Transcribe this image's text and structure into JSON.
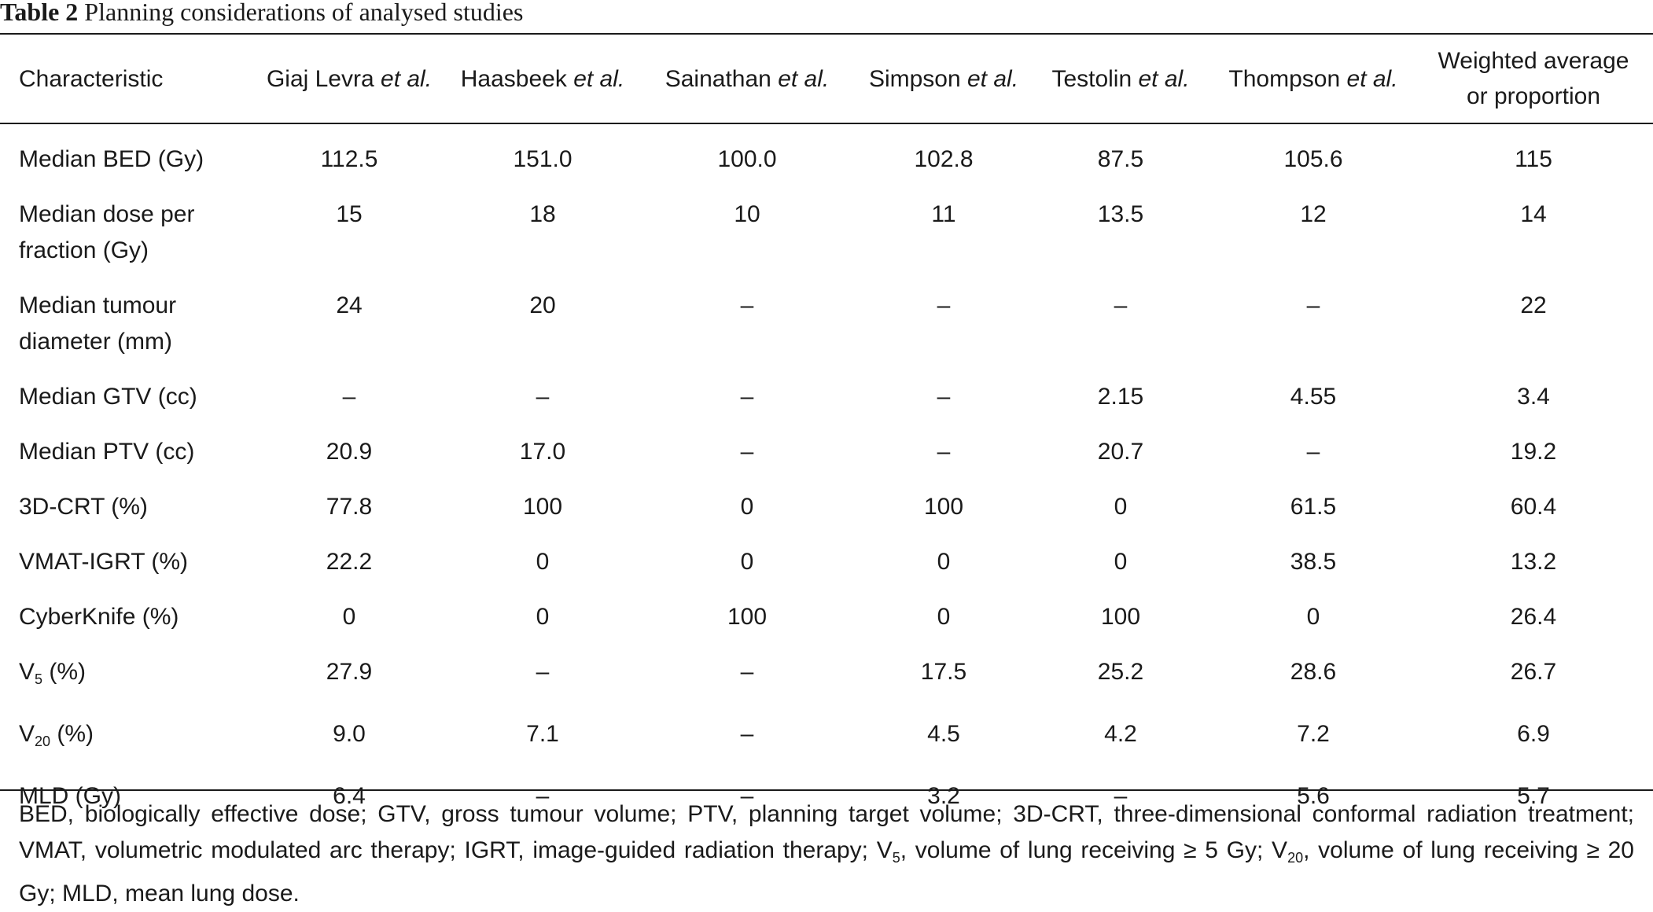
{
  "caption": {
    "label": "Table 2",
    "text": "Planning considerations of analysed studies"
  },
  "columns": {
    "characteristic": "Characteristic",
    "studies": [
      {
        "name": "Giaj Levra",
        "etal": "et al."
      },
      {
        "name": "Haasbeek",
        "etal": "et al."
      },
      {
        "name": "Sainathan",
        "etal": "et al."
      },
      {
        "name": "Simpson",
        "etal": "et al."
      },
      {
        "name": "Testolin",
        "etal": "et al."
      },
      {
        "name": "Thompson",
        "etal": "et al."
      }
    ],
    "weighted_line1": "Weighted average",
    "weighted_line2": "or proportion"
  },
  "rows": [
    {
      "label": "Median BED (Gy)",
      "values": [
        "112.5",
        "151.0",
        "100.0",
        "102.8",
        "87.5",
        "105.6",
        "115"
      ]
    },
    {
      "label_line1": "Median dose per",
      "label_line2": "fraction (Gy)",
      "values": [
        "15",
        "18",
        "10",
        "11",
        "13.5",
        "12",
        "14"
      ]
    },
    {
      "label_line1": "Median tumour",
      "label_line2": "diameter (mm)",
      "values": [
        "24",
        "20",
        "–",
        "–",
        "–",
        "–",
        "22"
      ]
    },
    {
      "label": "Median GTV (cc)",
      "values": [
        "–",
        "–",
        "–",
        "–",
        "2.15",
        "4.55",
        "3.4"
      ]
    },
    {
      "label": "Median PTV (cc)",
      "values": [
        "20.9",
        "17.0",
        "–",
        "–",
        "20.7",
        "–",
        "19.2"
      ]
    },
    {
      "label": "3D-CRT (%)",
      "values": [
        "77.8",
        "100",
        "0",
        "100",
        "0",
        "61.5",
        "60.4"
      ]
    },
    {
      "label": "VMAT-IGRT (%)",
      "values": [
        "22.2",
        "0",
        "0",
        "0",
        "0",
        "38.5",
        "13.2"
      ]
    },
    {
      "label": "CyberKnife (%)",
      "values": [
        "0",
        "0",
        "100",
        "0",
        "100",
        "0",
        "26.4"
      ]
    },
    {
      "label_base": "V",
      "label_sub": "5",
      "label_rest": " (%)",
      "values": [
        "27.9",
        "–",
        "–",
        "17.5",
        "25.2",
        "28.6",
        "26.7"
      ]
    },
    {
      "label_base": "V",
      "label_sub": "20",
      "label_rest": " (%)",
      "values": [
        "9.0",
        "7.1",
        "–",
        "4.5",
        "4.2",
        "7.2",
        "6.9"
      ]
    },
    {
      "label": "MLD (Gy)",
      "values": [
        "6.4",
        "–",
        "–",
        "3.2",
        "–",
        "5.6",
        "5.7"
      ]
    }
  ],
  "footnote": {
    "part1": "BED, biologically effective dose; GTV, gross tumour volume; PTV, planning target volume; 3D-CRT, three-dimensional conformal radiation treatment; VMAT, volumetric modulated arc therapy; IGRT, image-guided radiation therapy; V",
    "sub1": "5",
    "part2": ", volume of lung receiving ≥ 5 Gy; V",
    "sub2": "20",
    "part3": ", volume of lung receiving ≥ 20 Gy; MLD, mean lung dose."
  }
}
